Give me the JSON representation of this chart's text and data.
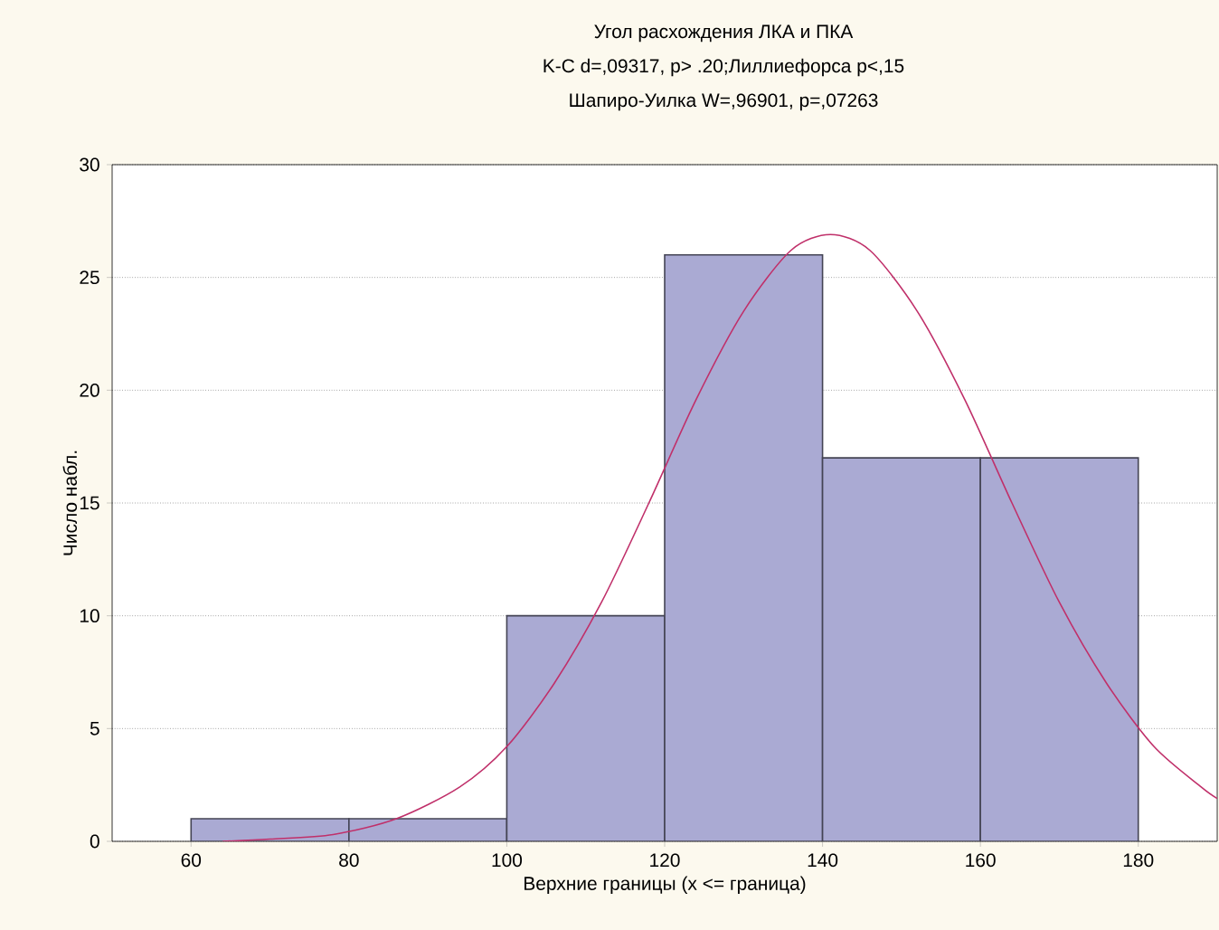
{
  "chart_data": {
    "type": "histogram",
    "title": "Угол расхождения ЛКА и ПКА",
    "annotations": [
      "K-C d=,09317, p> .20;Лиллиефорса p<,15",
      "Шапиро-Уилка W=,96901, p=,07263"
    ],
    "xlabel": "Верхние границы (x <= граница)",
    "ylabel": "Число набл.",
    "bins": [
      60,
      80,
      100,
      120,
      140,
      160,
      180
    ],
    "values": [
      1,
      1,
      10,
      26,
      17,
      17
    ],
    "color": "#aaaad3",
    "series": [
      {
        "type": "line",
        "color": "#c0306a",
        "x": [
          64,
          70,
          78,
          86,
          94,
          100,
          106,
          112,
          118,
          124,
          130,
          136,
          141,
          146,
          152,
          158,
          164,
          170,
          176,
          182,
          188,
          190
        ],
        "values": [
          0,
          0.1,
          0.3,
          1,
          2.4,
          4.2,
          7,
          10.6,
          15,
          19.6,
          23.5,
          26.2,
          26.9,
          26.2,
          23.5,
          19.6,
          15,
          10.6,
          7,
          4.2,
          2.4,
          1.9
        ]
      }
    ],
    "xlim": [
      50,
      190
    ],
    "ylim": [
      0,
      30
    ],
    "xticks": [
      60,
      80,
      100,
      120,
      140,
      160,
      180
    ],
    "yticks": [
      0,
      5,
      10,
      15,
      20,
      25,
      30
    ],
    "grid": "y"
  }
}
